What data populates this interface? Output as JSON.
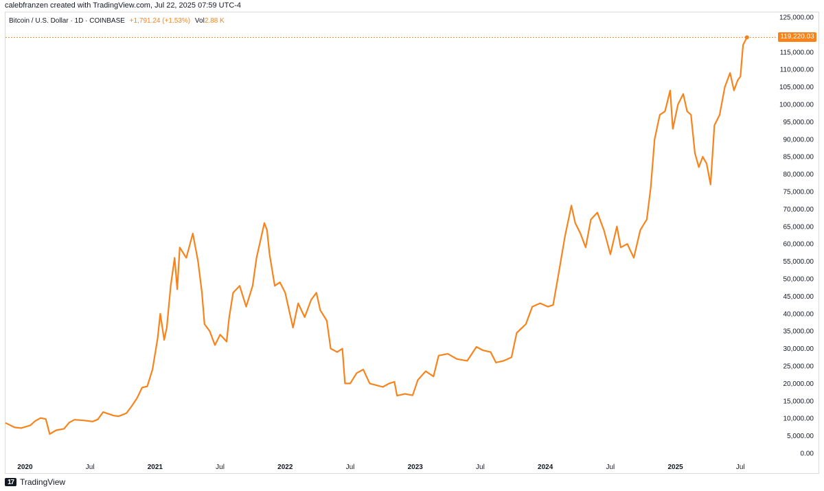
{
  "header": {
    "credit": "calebfranzen created with TradingView.com, Jul 22, 2025 07:59 UTC-4"
  },
  "legend": {
    "symbol": "Bitcoin / U.S. Dollar · 1D · COINBASE",
    "change": "+1,791.24 (+1.53%)",
    "vol_label": "Vol",
    "vol_value": "2.88 K"
  },
  "price_tag": "119,220.03",
  "footer": {
    "brand": "TradingView",
    "logo_glyph": "17"
  },
  "colors": {
    "line": "#f7831a",
    "background": "#ffffff",
    "text": "#131722"
  },
  "chart_data": {
    "type": "line",
    "title": "",
    "xlabel": "",
    "ylabel": "",
    "ylim": [
      0,
      125000
    ],
    "xlim": [
      2019.85,
      2025.72
    ],
    "grid": false,
    "y_ticks": [
      0,
      5000,
      10000,
      15000,
      20000,
      25000,
      30000,
      35000,
      40000,
      45000,
      50000,
      55000,
      60000,
      65000,
      70000,
      75000,
      80000,
      85000,
      90000,
      95000,
      100000,
      105000,
      110000,
      115000,
      120000,
      125000
    ],
    "y_tick_labels": [
      "0.00",
      "5,000.00",
      "10,000.00",
      "15,000.00",
      "20,000.00",
      "25,000.00",
      "30,000.00",
      "35,000.00",
      "40,000.00",
      "45,000.00",
      "50,000.00",
      "55,000.00",
      "60,000.00",
      "65,000.00",
      "70,000.00",
      "75,000.00",
      "80,000.00",
      "85,000.00",
      "90,000.00",
      "95,000.00",
      "100,000.00",
      "105,000.00",
      "110,000.00",
      "115,000.00",
      "120,000.00",
      "125,000.00"
    ],
    "x_ticks": [
      {
        "x": 2020.0,
        "label": "2020",
        "major": true
      },
      {
        "x": 2020.5,
        "label": "Jul",
        "major": false
      },
      {
        "x": 2021.0,
        "label": "2021",
        "major": true
      },
      {
        "x": 2021.5,
        "label": "Jul",
        "major": false
      },
      {
        "x": 2022.0,
        "label": "2022",
        "major": true
      },
      {
        "x": 2022.5,
        "label": "Jul",
        "major": false
      },
      {
        "x": 2023.0,
        "label": "2023",
        "major": true
      },
      {
        "x": 2023.5,
        "label": "Jul",
        "major": false
      },
      {
        "x": 2024.0,
        "label": "2024",
        "major": true
      },
      {
        "x": 2024.5,
        "label": "Jul",
        "major": false
      },
      {
        "x": 2025.0,
        "label": "2025",
        "major": true
      },
      {
        "x": 2025.5,
        "label": "Jul",
        "major": false
      }
    ],
    "last_price": 119220.03,
    "series": [
      {
        "points": [
          [
            2019.85,
            8700
          ],
          [
            2019.92,
            7400
          ],
          [
            2019.97,
            7200
          ],
          [
            2020.04,
            8000
          ],
          [
            2020.08,
            9300
          ],
          [
            2020.12,
            10100
          ],
          [
            2020.16,
            9800
          ],
          [
            2020.19,
            5500
          ],
          [
            2020.24,
            6600
          ],
          [
            2020.3,
            7000
          ],
          [
            2020.34,
            8800
          ],
          [
            2020.38,
            9600
          ],
          [
            2020.45,
            9400
          ],
          [
            2020.52,
            9100
          ],
          [
            2020.56,
            9700
          ],
          [
            2020.6,
            11800
          ],
          [
            2020.68,
            10800
          ],
          [
            2020.72,
            10600
          ],
          [
            2020.78,
            11500
          ],
          [
            2020.82,
            13500
          ],
          [
            2020.86,
            15700
          ],
          [
            2020.9,
            18800
          ],
          [
            2020.94,
            19200
          ],
          [
            2020.98,
            24000
          ],
          [
            2021.02,
            33000
          ],
          [
            2021.04,
            40000
          ],
          [
            2021.07,
            32500
          ],
          [
            2021.09,
            36000
          ],
          [
            2021.12,
            48000
          ],
          [
            2021.15,
            56000
          ],
          [
            2021.17,
            47000
          ],
          [
            2021.19,
            59000
          ],
          [
            2021.24,
            56000
          ],
          [
            2021.29,
            63000
          ],
          [
            2021.33,
            55000
          ],
          [
            2021.36,
            46000
          ],
          [
            2021.38,
            37000
          ],
          [
            2021.42,
            35000
          ],
          [
            2021.46,
            31000
          ],
          [
            2021.5,
            34000
          ],
          [
            2021.55,
            32000
          ],
          [
            2021.57,
            39000
          ],
          [
            2021.6,
            46000
          ],
          [
            2021.65,
            48000
          ],
          [
            2021.7,
            42000
          ],
          [
            2021.75,
            48000
          ],
          [
            2021.78,
            56000
          ],
          [
            2021.81,
            61000
          ],
          [
            2021.84,
            66000
          ],
          [
            2021.86,
            64000
          ],
          [
            2021.88,
            57000
          ],
          [
            2021.92,
            48000
          ],
          [
            2021.96,
            49000
          ],
          [
            2022.0,
            46000
          ],
          [
            2022.03,
            41000
          ],
          [
            2022.06,
            36000
          ],
          [
            2022.1,
            43000
          ],
          [
            2022.15,
            39000
          ],
          [
            2022.2,
            44000
          ],
          [
            2022.24,
            46000
          ],
          [
            2022.27,
            41000
          ],
          [
            2022.32,
            38000
          ],
          [
            2022.35,
            30000
          ],
          [
            2022.4,
            29000
          ],
          [
            2022.44,
            30000
          ],
          [
            2022.46,
            20000
          ],
          [
            2022.5,
            20000
          ],
          [
            2022.55,
            23000
          ],
          [
            2022.6,
            24000
          ],
          [
            2022.65,
            20000
          ],
          [
            2022.7,
            19500
          ],
          [
            2022.75,
            19000
          ],
          [
            2022.8,
            20000
          ],
          [
            2022.84,
            20500
          ],
          [
            2022.86,
            16500
          ],
          [
            2022.92,
            17000
          ],
          [
            2022.98,
            16600
          ],
          [
            2023.02,
            21000
          ],
          [
            2023.08,
            23500
          ],
          [
            2023.14,
            22000
          ],
          [
            2023.18,
            28000
          ],
          [
            2023.25,
            28500
          ],
          [
            2023.32,
            27000
          ],
          [
            2023.4,
            26500
          ],
          [
            2023.47,
            30500
          ],
          [
            2023.52,
            29500
          ],
          [
            2023.58,
            29000
          ],
          [
            2023.62,
            26000
          ],
          [
            2023.68,
            26500
          ],
          [
            2023.74,
            27500
          ],
          [
            2023.78,
            34500
          ],
          [
            2023.85,
            37000
          ],
          [
            2023.9,
            42000
          ],
          [
            2023.96,
            43000
          ],
          [
            2024.02,
            42000
          ],
          [
            2024.06,
            42500
          ],
          [
            2024.1,
            51000
          ],
          [
            2024.15,
            62000
          ],
          [
            2024.2,
            71000
          ],
          [
            2024.23,
            66000
          ],
          [
            2024.27,
            63000
          ],
          [
            2024.31,
            59000
          ],
          [
            2024.35,
            67000
          ],
          [
            2024.4,
            69000
          ],
          [
            2024.45,
            64000
          ],
          [
            2024.5,
            57000
          ],
          [
            2024.55,
            65000
          ],
          [
            2024.58,
            59000
          ],
          [
            2024.63,
            60000
          ],
          [
            2024.68,
            56000
          ],
          [
            2024.73,
            64000
          ],
          [
            2024.78,
            67000
          ],
          [
            2024.81,
            76000
          ],
          [
            2024.84,
            90000
          ],
          [
            2024.88,
            97000
          ],
          [
            2024.92,
            98000
          ],
          [
            2024.96,
            104000
          ],
          [
            2024.98,
            93000
          ],
          [
            2025.02,
            100000
          ],
          [
            2025.06,
            103000
          ],
          [
            2025.09,
            98000
          ],
          [
            2025.12,
            97000
          ],
          [
            2025.15,
            86000
          ],
          [
            2025.18,
            82000
          ],
          [
            2025.21,
            85000
          ],
          [
            2025.24,
            83000
          ],
          [
            2025.27,
            77000
          ],
          [
            2025.3,
            94000
          ],
          [
            2025.34,
            97000
          ],
          [
            2025.38,
            105000
          ],
          [
            2025.42,
            109000
          ],
          [
            2025.45,
            104000
          ],
          [
            2025.48,
            107000
          ],
          [
            2025.5,
            108000
          ],
          [
            2025.52,
            117000
          ],
          [
            2025.54,
            118500
          ],
          [
            2025.55,
            119220
          ]
        ]
      }
    ]
  }
}
